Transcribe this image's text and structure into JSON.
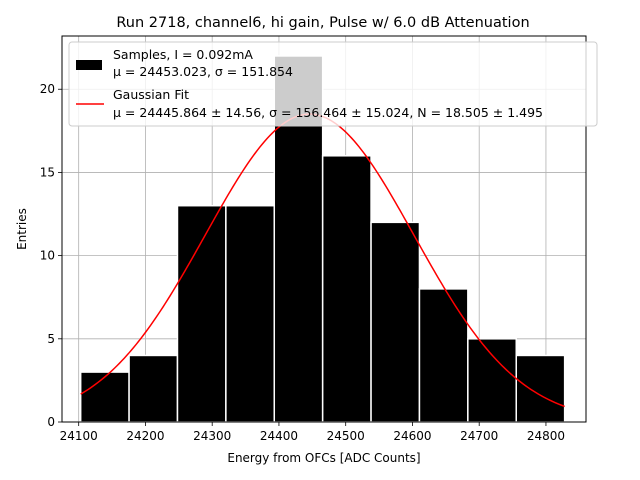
{
  "chart_data": {
    "type": "bar",
    "title": "Run 2718, channel6, hi gain, Pulse w/ 6.0 dB Attenuation",
    "xlabel": "Energy from OFCs [ADC Counts]",
    "ylabel": "Entries",
    "xlim": [
      24075,
      24860
    ],
    "ylim": [
      0,
      23.2
    ],
    "xticks": [
      24100,
      24200,
      24300,
      24400,
      24500,
      24600,
      24700,
      24800
    ],
    "yticks": [
      0,
      5,
      10,
      15,
      20
    ],
    "grid": true,
    "legend_position": "top-left",
    "bins": {
      "edges": [
        24103,
        24175.5,
        24248,
        24320.5,
        24393,
        24465.5,
        24538,
        24610.5,
        24683,
        24755.5,
        24828
      ],
      "counts": [
        3,
        4,
        13,
        13,
        22,
        16,
        12,
        8,
        5,
        4
      ],
      "color": "#000000",
      "edgecolor": "#ffffff"
    },
    "fit": {
      "mu": 24445.864,
      "sigma": 156.464,
      "N": 18.505,
      "x_range": [
        24103,
        24828
      ],
      "color": "#ff0000"
    },
    "legend": [
      {
        "line1": "Samples, I = 0.092mA",
        "line2": "μ = 24453.023, σ = 151.854"
      },
      {
        "line1": "Gaussian Fit",
        "line2": "μ = 24445.864 ± 14.56, σ = 156.464 ± 15.024, N = 18.505 ± 1.495"
      }
    ]
  }
}
